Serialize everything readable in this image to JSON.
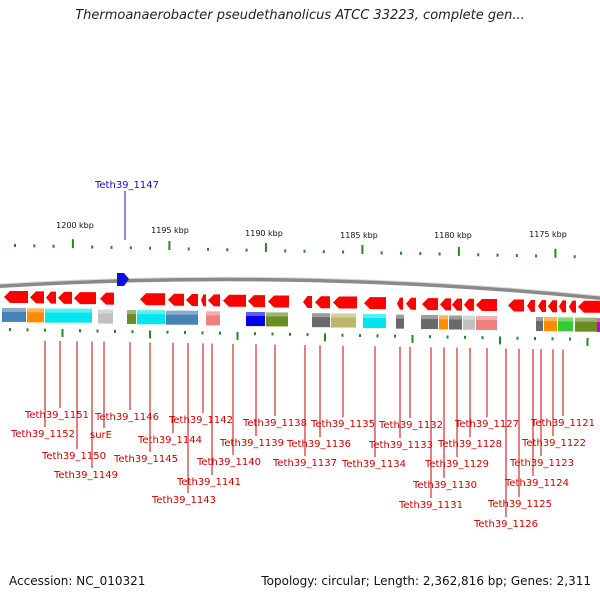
{
  "title": "Thermoanaerobacter pseudethanolicus ATCC 33223, complete gen...",
  "footer": {
    "accession": "Accession: NC_010321",
    "topology": "Topology: circular; Length: 2,362,816 bp; Genes: 2,311"
  },
  "highlight": {
    "label": "Teth39_1147",
    "color": "#1010cc"
  },
  "scale_labels": [
    "1200 kbp",
    "1195 kbp",
    "1190 kbp",
    "1185 kbp",
    "1180 kbp",
    "1175 kbp"
  ],
  "gene_labels": [
    "Teth39_1151",
    "Teth39_1152",
    "Teth39_1150",
    "Teth39_1149",
    "surE",
    "Teth39_1146",
    "Teth39_1145",
    "Teth39_1144",
    "Teth39_1143",
    "Teth39_1142",
    "Teth39_1141",
    "Teth39_1140",
    "Teth39_1139",
    "Teth39_1138",
    "Teth39_1137",
    "Teth39_1136",
    "Teth39_1135",
    "Teth39_1134",
    "Teth39_1133",
    "Teth39_1132",
    "Teth39_1131",
    "Teth39_1130",
    "Teth39_1129",
    "Teth39_1128",
    "Teth39_1127",
    "Teth39_1126",
    "Teth39_1125",
    "Teth39_1124",
    "Teth39_1123",
    "Teth39_1122",
    "Teth39_1121"
  ],
  "colors": {
    "gene_arrow": "#ff0000",
    "label_line": "#cc0000",
    "tick": "#228b22",
    "backbone": "#8a8a8a",
    "cogs": [
      "#4682b4",
      "#ff8c00",
      "#00e5ee",
      "#c0c0c0",
      "#6b8e23",
      "#f08080",
      "#0000ee",
      "#696969",
      "#bdb76b",
      "#32cd32",
      "#cc00cc"
    ]
  }
}
